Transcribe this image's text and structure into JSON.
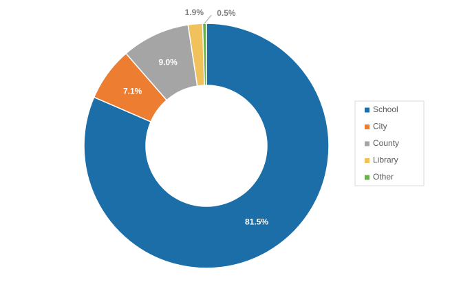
{
  "chart_data": {
    "type": "donut",
    "categories": [
      "School",
      "City",
      "County",
      "Library",
      "Other"
    ],
    "values": [
      81.5,
      7.1,
      9.0,
      1.9,
      0.5
    ],
    "value_labels": [
      "81.5%",
      "7.1%",
      "9.0%",
      "1.9%",
      "0.5%"
    ],
    "colors": [
      "#1c6ea8",
      "#ed7d31",
      "#a5a5a5",
      "#f1c15c",
      "#6ab04c"
    ],
    "legend": "right"
  }
}
